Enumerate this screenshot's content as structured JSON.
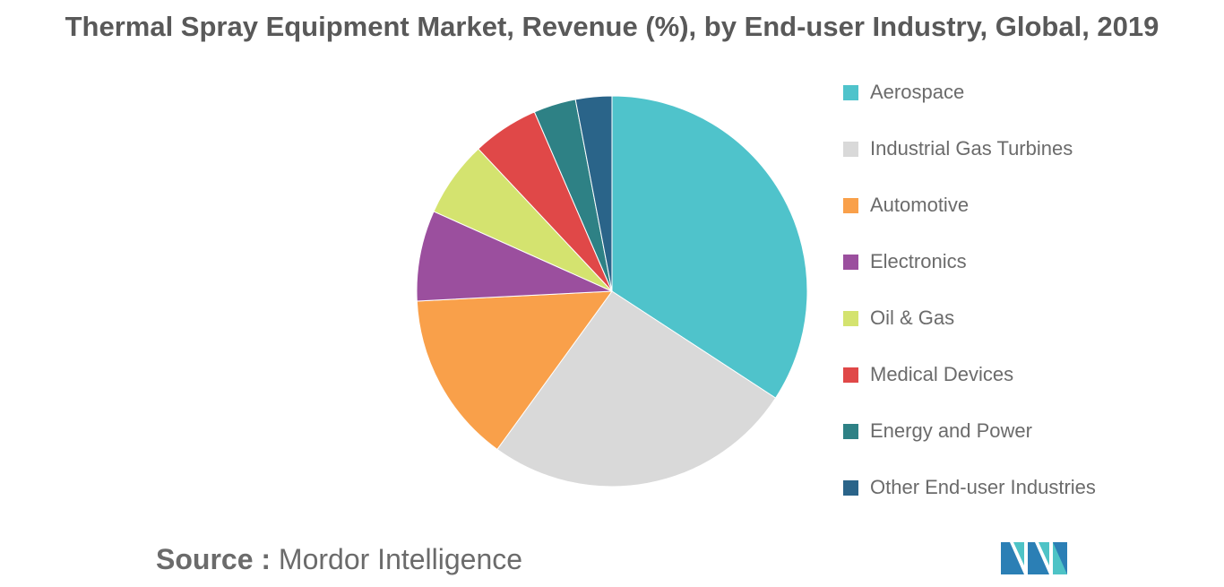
{
  "chart_data": {
    "type": "pie",
    "title": "Thermal Spray Equipment Market, Revenue (%), by End-user Industry, Global, 2019",
    "legend_position": "right",
    "series": [
      {
        "name": "Aerospace",
        "value": 34.2,
        "color": "#4fc3cb"
      },
      {
        "name": "Industrial Gas Turbines",
        "value": 25.8,
        "color": "#d9d9d9"
      },
      {
        "name": "Automotive",
        "value": 14.2,
        "color": "#f9a04a"
      },
      {
        "name": "Electronics",
        "value": 7.5,
        "color": "#9b4f9e"
      },
      {
        "name": "Oil & Gas",
        "value": 6.3,
        "color": "#d4e36f"
      },
      {
        "name": "Medical Devices",
        "value": 5.5,
        "color": "#e04848"
      },
      {
        "name": "Energy and Power",
        "value": 3.5,
        "color": "#2e8185"
      },
      {
        "name": "Other End-user Industries",
        "value": 3.0,
        "color": "#2a6489"
      }
    ]
  },
  "source": {
    "label": "Source :",
    "text": "Mordor Intelligence"
  },
  "logo": {
    "icon": "mordor-intelligence-logo-icon",
    "colors": [
      "#2b7fb5",
      "#4ec3c6"
    ]
  }
}
